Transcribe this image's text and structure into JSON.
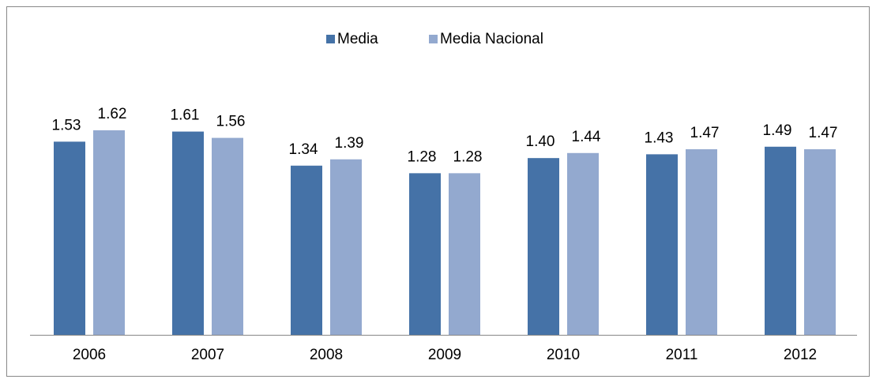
{
  "chart_data": {
    "type": "bar",
    "categories": [
      "2006",
      "2007",
      "2008",
      "2009",
      "2010",
      "2011",
      "2012"
    ],
    "series": [
      {
        "name": "Media",
        "color": "#4572a7",
        "values": [
          1.53,
          1.61,
          1.34,
          1.28,
          1.4,
          1.43,
          1.49
        ],
        "value_labels": [
          "1.53",
          "1.61",
          "1.34",
          "1.28",
          "1.40",
          "1.43",
          "1.49"
        ]
      },
      {
        "name": "Media Nacional",
        "color": "#93a9cf",
        "values": [
          1.62,
          1.56,
          1.39,
          1.28,
          1.44,
          1.47,
          1.47
        ],
        "value_labels": [
          "1.62",
          "1.56",
          "1.39",
          "1.28",
          "1.44",
          "1.47",
          "1.47"
        ]
      }
    ],
    "legend": "top"
  }
}
